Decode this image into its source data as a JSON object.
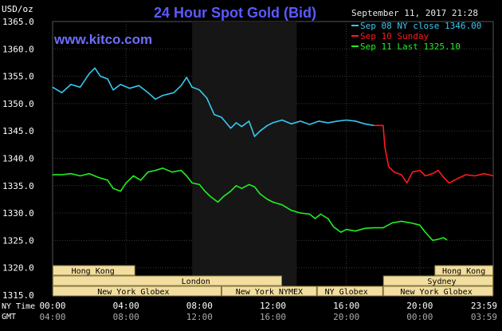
{
  "chart_data": {
    "type": "line",
    "title": "24 Hour Spot Gold (Bid)",
    "watermark": "www.kitco.com",
    "y_unit_label": "USD/oz",
    "timestamp": "September 11, 2017 21:28",
    "ylim": [
      1315,
      1365
    ],
    "y_ticks": [
      "1365.0",
      "1360.0",
      "1355.0",
      "1350.0",
      "1345.0",
      "1340.0",
      "1335.0",
      "1330.0",
      "1325.0",
      "1320.0",
      "1315.0"
    ],
    "x_domain": [
      0,
      24
    ],
    "x_ticks_ny": [
      "00:00",
      "04:00",
      "08:00",
      "12:00",
      "16:00",
      "20:00",
      "23:59"
    ],
    "x_ticks_gmt": [
      "04:00",
      "08:00",
      "12:00",
      "16:00",
      "20:00",
      "00:00",
      "03:59"
    ],
    "x_row_labels": {
      "ny": "NY Time",
      "gmt": "GMT"
    },
    "shaded_session": [
      7.6,
      13.3
    ],
    "colors": {
      "background": "#000000",
      "grid": "#3a3a3a",
      "text": "#ffffff",
      "title": "#5a5aff",
      "watermark": "#6e6eff",
      "timestamp": "#e8e8e8",
      "session_fill": "#f2dea0",
      "session_stroke": "#8a7a40",
      "session_text": "#000000"
    },
    "legend": [
      {
        "label": "Sep 08 NY close 1346.00",
        "color": "#39c8f0"
      },
      {
        "label": "Sep 10 Sunday",
        "color": "#ff1a1a"
      },
      {
        "label": "Sep 11 Last 1325.10",
        "color": "#22ee22"
      }
    ],
    "series": [
      {
        "name": "Sep 08 NY close 1346.00",
        "color": "#39c8f0",
        "points": [
          [
            0,
            1353.0
          ],
          [
            0.5,
            1352.0
          ],
          [
            1.0,
            1353.5
          ],
          [
            1.5,
            1353.0
          ],
          [
            2.0,
            1355.5
          ],
          [
            2.3,
            1356.5
          ],
          [
            2.6,
            1355.0
          ],
          [
            3.0,
            1354.5
          ],
          [
            3.3,
            1352.5
          ],
          [
            3.7,
            1353.5
          ],
          [
            4.2,
            1352.8
          ],
          [
            4.7,
            1353.3
          ],
          [
            5.2,
            1352.0
          ],
          [
            5.6,
            1350.8
          ],
          [
            6.0,
            1351.5
          ],
          [
            6.6,
            1352.0
          ],
          [
            7.0,
            1353.3
          ],
          [
            7.3,
            1354.8
          ],
          [
            7.6,
            1353.0
          ],
          [
            8.0,
            1352.5
          ],
          [
            8.4,
            1351.0
          ],
          [
            8.8,
            1348.0
          ],
          [
            9.2,
            1347.5
          ],
          [
            9.7,
            1345.5
          ],
          [
            10.0,
            1346.5
          ],
          [
            10.3,
            1345.8
          ],
          [
            10.7,
            1346.8
          ],
          [
            11.0,
            1344.0
          ],
          [
            11.3,
            1345.0
          ],
          [
            11.7,
            1346.0
          ],
          [
            12.0,
            1346.5
          ],
          [
            12.5,
            1347.0
          ],
          [
            13.0,
            1346.3
          ],
          [
            13.5,
            1346.8
          ],
          [
            14.0,
            1346.2
          ],
          [
            14.5,
            1346.8
          ],
          [
            15.0,
            1346.5
          ],
          [
            15.5,
            1346.8
          ],
          [
            16.0,
            1347.0
          ],
          [
            16.5,
            1346.8
          ],
          [
            17.0,
            1346.3
          ],
          [
            17.5,
            1346.0
          ]
        ]
      },
      {
        "name": "Sep 10 Sunday",
        "color": "#ff1a1a",
        "points": [
          [
            17.5,
            1346.0
          ],
          [
            18.0,
            1346.0
          ],
          [
            18.1,
            1342.0
          ],
          [
            18.3,
            1338.5
          ],
          [
            18.6,
            1337.5
          ],
          [
            19.0,
            1337.0
          ],
          [
            19.3,
            1335.5
          ],
          [
            19.6,
            1337.5
          ],
          [
            20.0,
            1337.8
          ],
          [
            20.3,
            1336.8
          ],
          [
            20.7,
            1337.2
          ],
          [
            21.0,
            1337.8
          ],
          [
            21.3,
            1336.5
          ],
          [
            21.6,
            1335.5
          ],
          [
            22.0,
            1336.2
          ],
          [
            22.5,
            1337.0
          ],
          [
            23.0,
            1336.8
          ],
          [
            23.5,
            1337.2
          ],
          [
            24.0,
            1336.8
          ]
        ]
      },
      {
        "name": "Sep 11 Last 1325.10",
        "color": "#22ee22",
        "points": [
          [
            0,
            1337.0
          ],
          [
            0.5,
            1337.0
          ],
          [
            1.0,
            1337.2
          ],
          [
            1.5,
            1336.8
          ],
          [
            2.0,
            1337.2
          ],
          [
            2.5,
            1336.5
          ],
          [
            3.0,
            1336.0
          ],
          [
            3.3,
            1334.5
          ],
          [
            3.7,
            1334.0
          ],
          [
            4.0,
            1335.5
          ],
          [
            4.4,
            1336.8
          ],
          [
            4.8,
            1336.0
          ],
          [
            5.2,
            1337.5
          ],
          [
            5.6,
            1337.8
          ],
          [
            6.0,
            1338.2
          ],
          [
            6.5,
            1337.5
          ],
          [
            7.0,
            1337.8
          ],
          [
            7.3,
            1336.8
          ],
          [
            7.6,
            1335.5
          ],
          [
            8.0,
            1335.2
          ],
          [
            8.3,
            1334.0
          ],
          [
            8.6,
            1333.0
          ],
          [
            9.0,
            1332.0
          ],
          [
            9.3,
            1333.0
          ],
          [
            9.7,
            1334.0
          ],
          [
            10.0,
            1335.0
          ],
          [
            10.3,
            1334.5
          ],
          [
            10.7,
            1335.2
          ],
          [
            11.0,
            1334.8
          ],
          [
            11.3,
            1333.5
          ],
          [
            11.7,
            1332.5
          ],
          [
            12.0,
            1332.0
          ],
          [
            12.5,
            1331.5
          ],
          [
            13.0,
            1330.5
          ],
          [
            13.5,
            1330.0
          ],
          [
            14.0,
            1329.8
          ],
          [
            14.3,
            1329.0
          ],
          [
            14.6,
            1329.8
          ],
          [
            15.0,
            1329.0
          ],
          [
            15.3,
            1327.5
          ],
          [
            15.7,
            1326.5
          ],
          [
            16.0,
            1327.0
          ],
          [
            16.5,
            1326.7
          ],
          [
            17.0,
            1327.2
          ],
          [
            17.5,
            1327.3
          ],
          [
            18.0,
            1327.3
          ],
          [
            18.5,
            1328.2
          ],
          [
            19.0,
            1328.5
          ],
          [
            19.5,
            1328.2
          ],
          [
            20.0,
            1327.8
          ],
          [
            20.3,
            1326.5
          ],
          [
            20.7,
            1325.0
          ],
          [
            21.0,
            1325.2
          ],
          [
            21.3,
            1325.5
          ],
          [
            21.47,
            1325.1
          ]
        ]
      }
    ],
    "sessions": [
      {
        "label": "Hong Kong",
        "row": 0,
        "start": 0.0,
        "end": 4.5,
        "label_at": 2.2
      },
      {
        "label": "London",
        "row": 1,
        "start": 0.0,
        "end": 12.5,
        "label_at": 7.8
      },
      {
        "label": "New York Globex",
        "row": 2,
        "start": 0.0,
        "end": 9.2,
        "label_at": 4.4
      },
      {
        "label": "New York NYMEX",
        "row": 2,
        "start": 9.2,
        "end": 14.4,
        "label_at": 11.8
      },
      {
        "label": "NY Globex",
        "row": 2,
        "start": 14.4,
        "end": 18.0,
        "label_at": 16.0
      },
      {
        "label": "Hong Kong",
        "row": 0,
        "start": 20.8,
        "end": 24.0,
        "label_at": 22.4
      },
      {
        "label": "Sydney",
        "row": 1,
        "start": 18.0,
        "end": 24.0,
        "label_at": 21.2
      },
      {
        "label": "New York Globex",
        "row": 2,
        "start": 18.0,
        "end": 24.0,
        "label_at": 20.9
      }
    ]
  }
}
